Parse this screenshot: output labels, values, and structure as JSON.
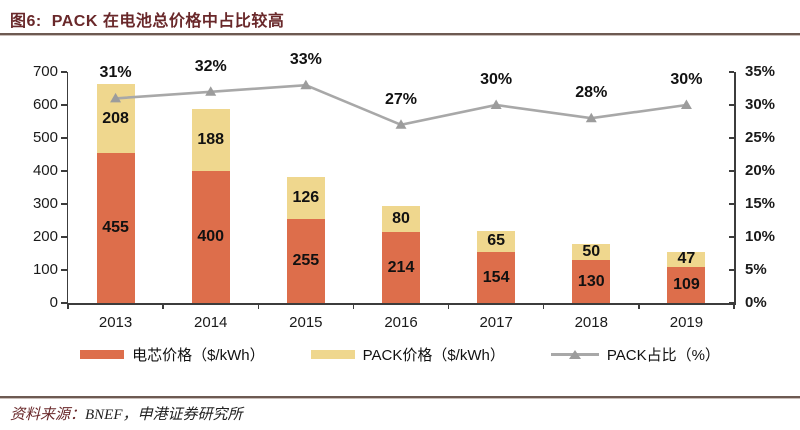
{
  "header": {
    "figure_label": "图6:",
    "title": "PACK 在电池总价格中占比较高"
  },
  "footer": {
    "source_label": "资料来源：",
    "source_value": "BNEF，申港证券研究所"
  },
  "colors": {
    "cell_bar": "#DD6E4B",
    "pack_bar": "#EFD78E",
    "line": "#A8A8A8",
    "marker": "#9C9C9C",
    "title_text": "#69282A",
    "rule": "#6D5A52",
    "axis": "#3C3C3C"
  },
  "chart_data": {
    "type": "bar",
    "subtype": "stacked-bars-with-percentage-line",
    "title": "图6: PACK 在电池总价格中占比较高",
    "categories": [
      "2013",
      "2014",
      "2015",
      "2016",
      "2017",
      "2018",
      "2019"
    ],
    "series": [
      {
        "name": "电芯价格（$/kWh）",
        "type": "bar",
        "stack": "price",
        "axis": "left",
        "color": "#DD6E4B",
        "values": [
          455,
          400,
          255,
          214,
          154,
          130,
          109
        ]
      },
      {
        "name": "PACK价格（$/kWh）",
        "type": "bar",
        "stack": "price",
        "axis": "left",
        "color": "#EFD78E",
        "values": [
          208,
          188,
          126,
          80,
          65,
          50,
          47
        ]
      },
      {
        "name": "PACK占比（%）",
        "type": "line",
        "axis": "right",
        "color": "#A8A8A8",
        "marker": "triangle",
        "values": [
          31,
          32,
          33,
          27,
          30,
          28,
          30
        ],
        "labels": [
          "31%",
          "32%",
          "33%",
          "27%",
          "30%",
          "28%",
          "30%"
        ]
      }
    ],
    "left_axis": {
      "min": 0,
      "max": 700,
      "tick_step": 100,
      "tick_labels": [
        "0",
        "100",
        "200",
        "300",
        "400",
        "500",
        "600",
        "700"
      ]
    },
    "right_axis": {
      "min": 0,
      "max": 35,
      "tick_step": 5,
      "tick_labels": [
        "0%",
        "5%",
        "10%",
        "15%",
        "20%",
        "25%",
        "30%",
        "35%"
      ]
    },
    "grid": false,
    "legend_position": "bottom"
  }
}
